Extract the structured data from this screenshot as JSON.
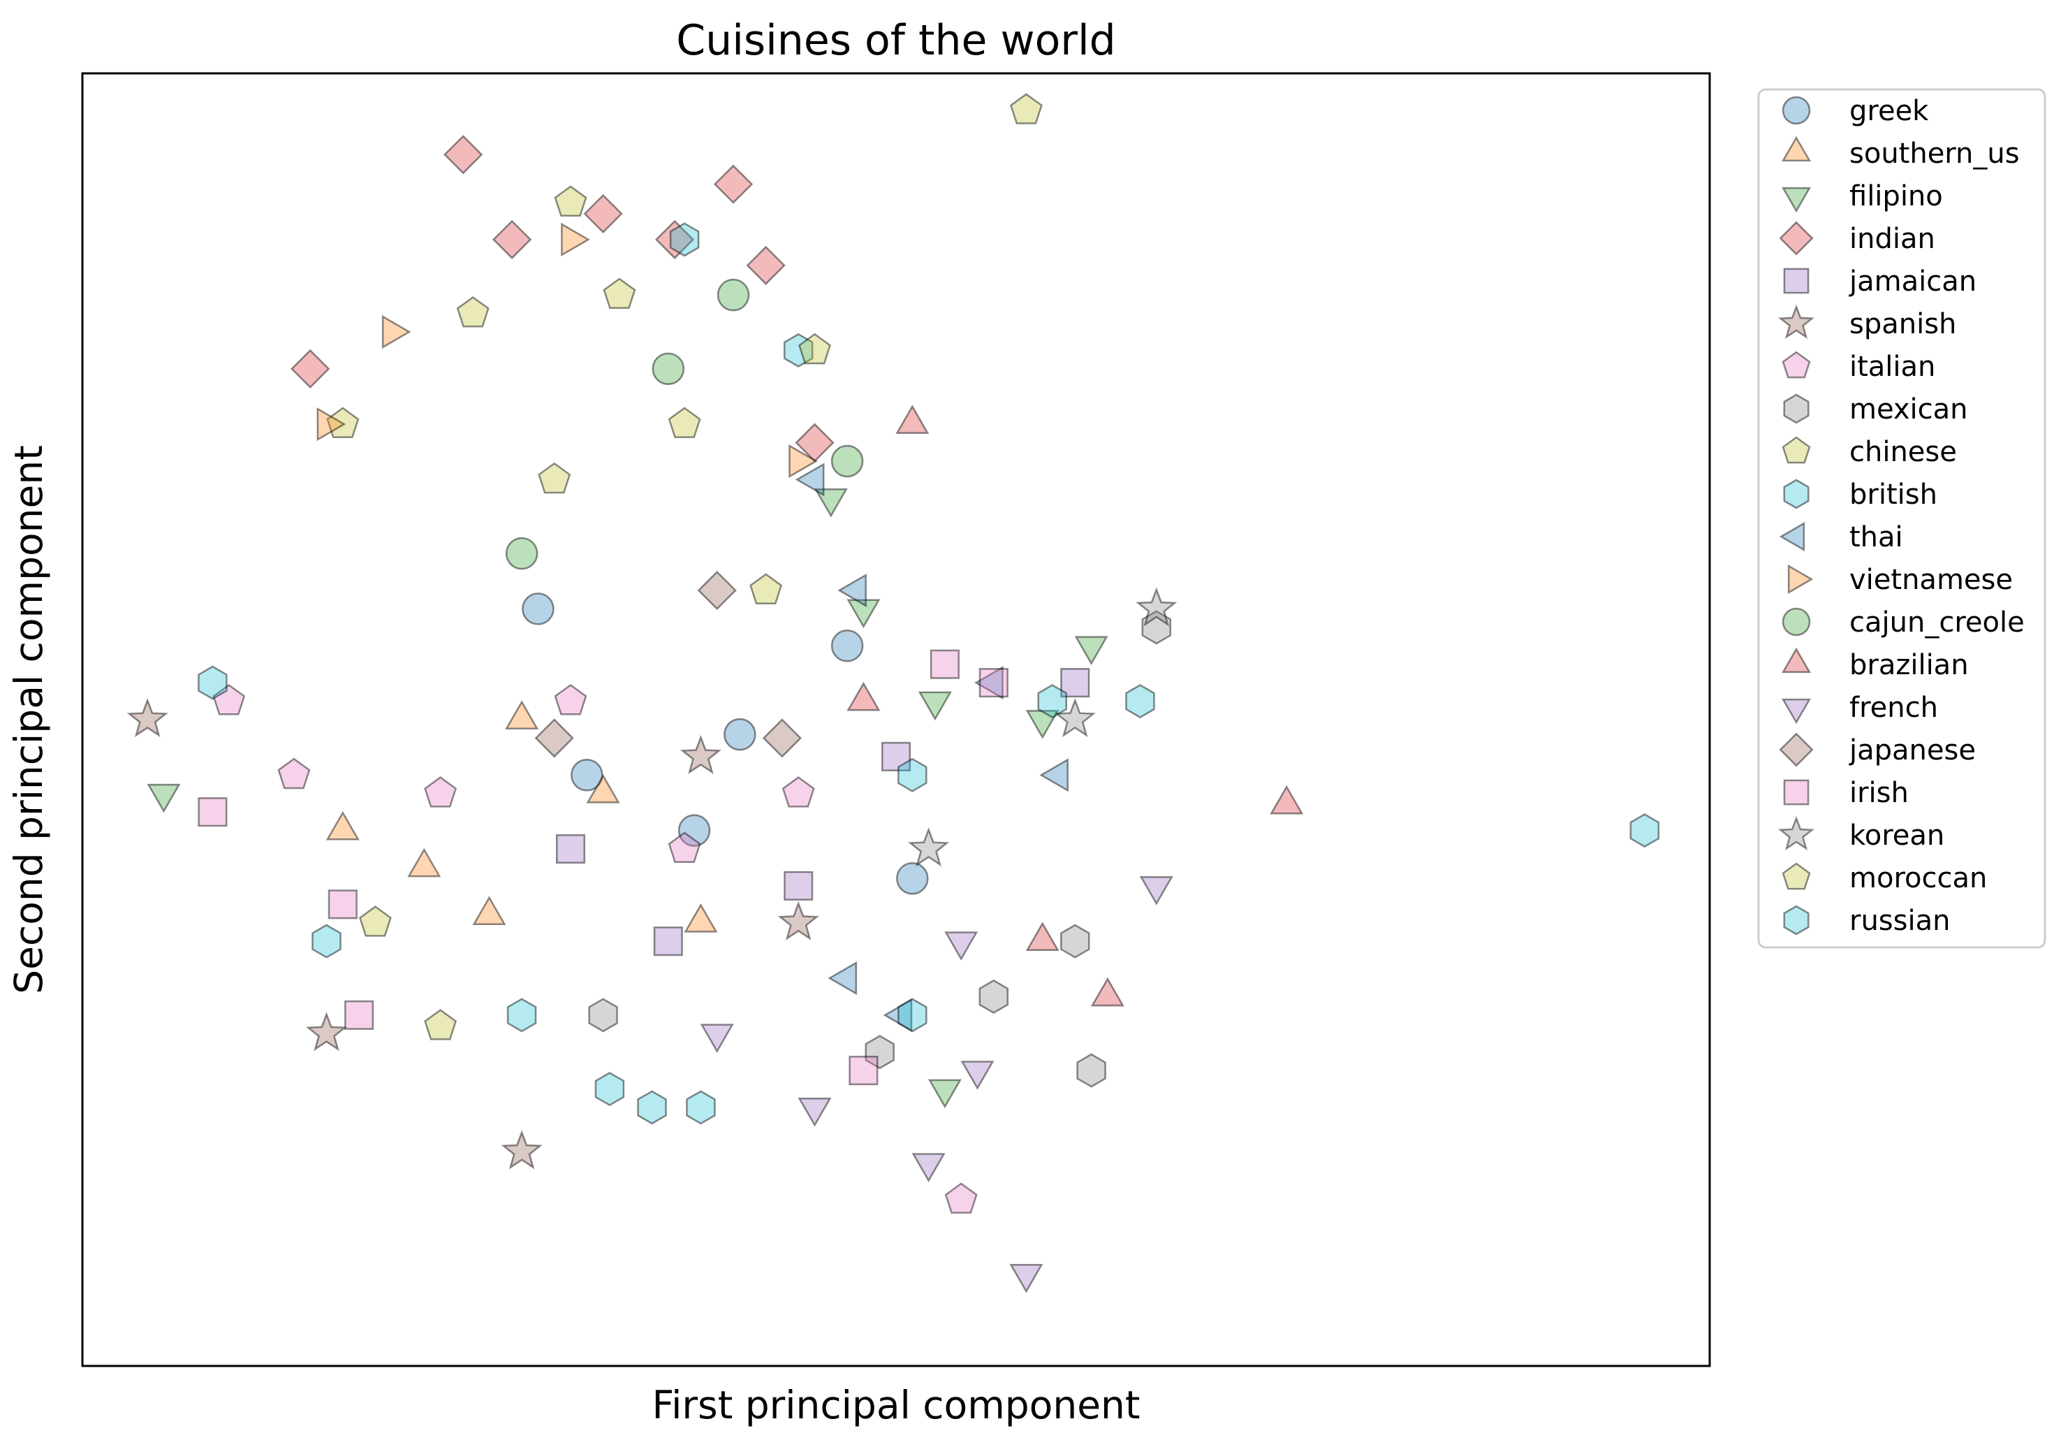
{
  "chart_data": {
    "type": "scatter",
    "title": "Cuisines of the world",
    "xlabel": "First principal component",
    "ylabel": "Second principal component",
    "xlim": [
      -1.0,
      4.0
    ],
    "ylim": [
      -1.5,
      2.0
    ],
    "grid": false,
    "ticks_visible": false,
    "legend_position": "outside-right",
    "series": [
      {
        "name": "greek",
        "marker": "circle",
        "color": "#1f77b4",
        "points": [
          [
            0.55,
            0.1
          ],
          [
            1.02,
            0.21
          ],
          [
            1.35,
            0.45
          ],
          [
            0.4,
            0.55
          ],
          [
            1.55,
            -0.18
          ],
          [
            0.88,
            -0.05
          ]
        ]
      },
      {
        "name": "southern_us",
        "marker": "triangle-up",
        "color": "#ff7f0e",
        "points": [
          [
            0.05,
            -0.15
          ],
          [
            0.25,
            -0.28
          ],
          [
            0.6,
            0.05
          ],
          [
            0.9,
            -0.3
          ],
          [
            -0.2,
            -0.05
          ],
          [
            0.35,
            0.25
          ]
        ]
      },
      {
        "name": "filipino",
        "marker": "triangle-down",
        "color": "#2ca02c",
        "points": [
          [
            -0.75,
            0.05
          ],
          [
            1.4,
            0.55
          ],
          [
            1.62,
            0.3
          ],
          [
            1.95,
            0.25
          ],
          [
            1.65,
            -0.75
          ],
          [
            2.1,
            0.45
          ],
          [
            1.3,
            0.85
          ]
        ]
      },
      {
        "name": "indian",
        "marker": "diamond",
        "color": "#d62728",
        "points": [
          [
            0.17,
            1.78
          ],
          [
            1.0,
            1.7
          ],
          [
            0.6,
            1.62
          ],
          [
            0.82,
            1.55
          ],
          [
            1.1,
            1.48
          ],
          [
            0.32,
            1.55
          ],
          [
            1.25,
            1.0
          ],
          [
            -0.3,
            1.2
          ]
        ]
      },
      {
        "name": "jamaican",
        "marker": "square",
        "color": "#9467bd",
        "points": [
          [
            0.5,
            -0.1
          ],
          [
            1.2,
            -0.2
          ],
          [
            1.5,
            0.15
          ],
          [
            2.05,
            0.35
          ],
          [
            0.8,
            -0.35
          ]
        ]
      },
      {
        "name": "spanish",
        "marker": "star",
        "color": "#8c564b",
        "points": [
          [
            -0.8,
            0.25
          ],
          [
            -0.25,
            -0.6
          ],
          [
            0.35,
            -0.92
          ],
          [
            1.2,
            -0.3
          ],
          [
            0.9,
            0.15
          ]
        ]
      },
      {
        "name": "italian",
        "marker": "pentagon",
        "color": "#e377c2",
        "points": [
          [
            -0.35,
            0.1
          ],
          [
            0.1,
            0.05
          ],
          [
            0.5,
            0.3
          ],
          [
            0.85,
            -0.1
          ],
          [
            1.2,
            0.05
          ],
          [
            1.7,
            -1.05
          ],
          [
            -0.55,
            0.3
          ]
        ]
      },
      {
        "name": "mexican",
        "marker": "hexagon",
        "color": "#7f7f7f",
        "points": [
          [
            0.6,
            -0.55
          ],
          [
            1.45,
            -0.65
          ],
          [
            1.8,
            -0.5
          ],
          [
            2.05,
            -0.35
          ],
          [
            2.3,
            0.5
          ],
          [
            2.1,
            -0.7
          ]
        ]
      },
      {
        "name": "chinese",
        "marker": "pentagon",
        "color": "#bcbd22",
        "points": [
          [
            -0.2,
            1.05
          ],
          [
            0.45,
            0.9
          ],
          [
            0.85,
            1.05
          ],
          [
            0.65,
            1.4
          ],
          [
            0.2,
            1.35
          ],
          [
            1.1,
            0.6
          ]
        ]
      },
      {
        "name": "british",
        "marker": "hexagon",
        "color": "#17becf",
        "points": [
          [
            -0.6,
            0.35
          ],
          [
            -0.25,
            -0.35
          ],
          [
            0.85,
            1.55
          ],
          [
            1.2,
            1.25
          ],
          [
            1.98,
            0.3
          ],
          [
            2.25,
            0.3
          ],
          [
            0.9,
            -0.8
          ],
          [
            0.62,
            -0.75
          ]
        ]
      },
      {
        "name": "thai",
        "marker": "triangle-left",
        "color": "#1f77b4",
        "points": [
          [
            1.38,
            0.6
          ],
          [
            1.25,
            0.9
          ],
          [
            1.52,
            -0.55
          ],
          [
            1.8,
            0.35
          ],
          [
            2.0,
            0.1
          ],
          [
            1.35,
            -0.45
          ]
        ]
      },
      {
        "name": "vietnamese",
        "marker": "triangle-right",
        "color": "#ff7f0e",
        "points": [
          [
            -0.05,
            1.3
          ],
          [
            -0.25,
            1.05
          ],
          [
            0.5,
            1.55
          ],
          [
            1.2,
            0.95
          ]
        ]
      },
      {
        "name": "cajun_creole",
        "marker": "circle",
        "color": "#2ca02c",
        "points": [
          [
            1.0,
            1.4
          ],
          [
            0.8,
            1.2
          ],
          [
            1.35,
            0.95
          ],
          [
            0.35,
            0.7
          ]
        ]
      },
      {
        "name": "brazilian",
        "marker": "triangle-up",
        "color": "#d62728",
        "points": [
          [
            2.7,
            0.02
          ],
          [
            2.15,
            -0.5
          ],
          [
            1.4,
            0.3
          ],
          [
            1.95,
            -0.35
          ],
          [
            1.55,
            1.05
          ]
        ]
      },
      {
        "name": "french",
        "marker": "triangle-down",
        "color": "#9467bd",
        "points": [
          [
            0.95,
            -0.6
          ],
          [
            1.25,
            -0.8
          ],
          [
            1.6,
            -0.95
          ],
          [
            2.3,
            -0.2
          ],
          [
            1.9,
            -1.25
          ],
          [
            1.7,
            -0.35
          ],
          [
            1.75,
            -0.7
          ]
        ]
      },
      {
        "name": "japanese",
        "marker": "diamond",
        "color": "#8c564b",
        "points": [
          [
            0.45,
            0.2
          ],
          [
            0.95,
            0.6
          ],
          [
            1.15,
            0.2
          ]
        ]
      },
      {
        "name": "irish",
        "marker": "square",
        "color": "#e377c2",
        "points": [
          [
            -0.6,
            0.0
          ],
          [
            -0.15,
            -0.55
          ],
          [
            1.4,
            -0.7
          ],
          [
            1.8,
            0.35
          ],
          [
            -0.2,
            -0.25
          ],
          [
            1.65,
            0.4
          ]
        ]
      },
      {
        "name": "korean",
        "marker": "star",
        "color": "#7f7f7f",
        "points": [
          [
            2.3,
            0.55
          ],
          [
            2.05,
            0.25
          ],
          [
            1.6,
            -0.1
          ]
        ]
      },
      {
        "name": "moroccan",
        "marker": "pentagon",
        "color": "#bcbd22",
        "points": [
          [
            1.9,
            1.9
          ],
          [
            0.5,
            1.65
          ],
          [
            0.1,
            -0.58
          ],
          [
            -0.1,
            -0.3
          ],
          [
            1.25,
            1.25
          ]
        ]
      },
      {
        "name": "russian",
        "marker": "hexagon",
        "color": "#17becf",
        "points": [
          [
            3.8,
            -0.05
          ],
          [
            0.75,
            -0.8
          ],
          [
            0.35,
            -0.55
          ],
          [
            1.55,
            -0.55
          ],
          [
            1.55,
            0.1
          ]
        ]
      }
    ]
  }
}
